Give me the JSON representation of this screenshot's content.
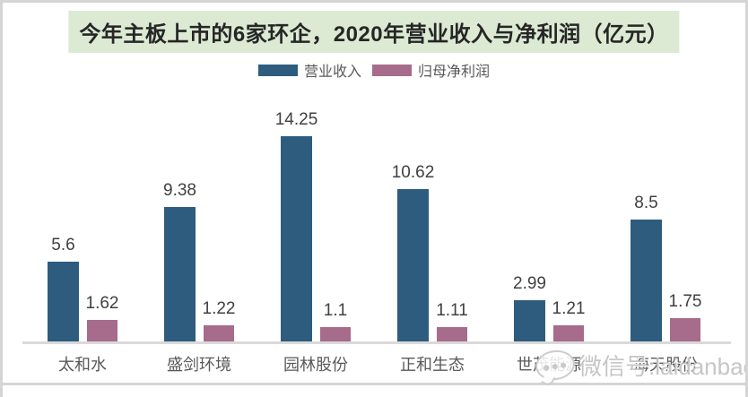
{
  "page": {
    "watermark": {
      "icon": "chat-bubble-icon",
      "text": "微信号:laidanbaoq"
    }
  },
  "chart_data": {
    "type": "bar",
    "title": "今年主板上市的6家环企，2020年营业收入与净利润（亿元）",
    "title_highlight_color": "#dcead3",
    "categories": [
      "太和水",
      "盛剑环境",
      "园林股份",
      "正和生态",
      "世茂能源",
      "海天股份"
    ],
    "series": [
      {
        "name": "营业收入",
        "color": "#2e5c7e",
        "values": [
          5.6,
          9.38,
          14.25,
          10.62,
          2.99,
          8.5
        ]
      },
      {
        "name": "归母净利润",
        "color": "#a76b8b",
        "values": [
          1.62,
          1.22,
          1.1,
          1.11,
          1.21,
          1.75
        ]
      }
    ],
    "value_labels": true,
    "legend_position": "top",
    "xlabel": "",
    "ylabel": "",
    "ylim": [
      0,
      14.25
    ],
    "grid": false,
    "axis_line_color": "#d9d9d9"
  }
}
